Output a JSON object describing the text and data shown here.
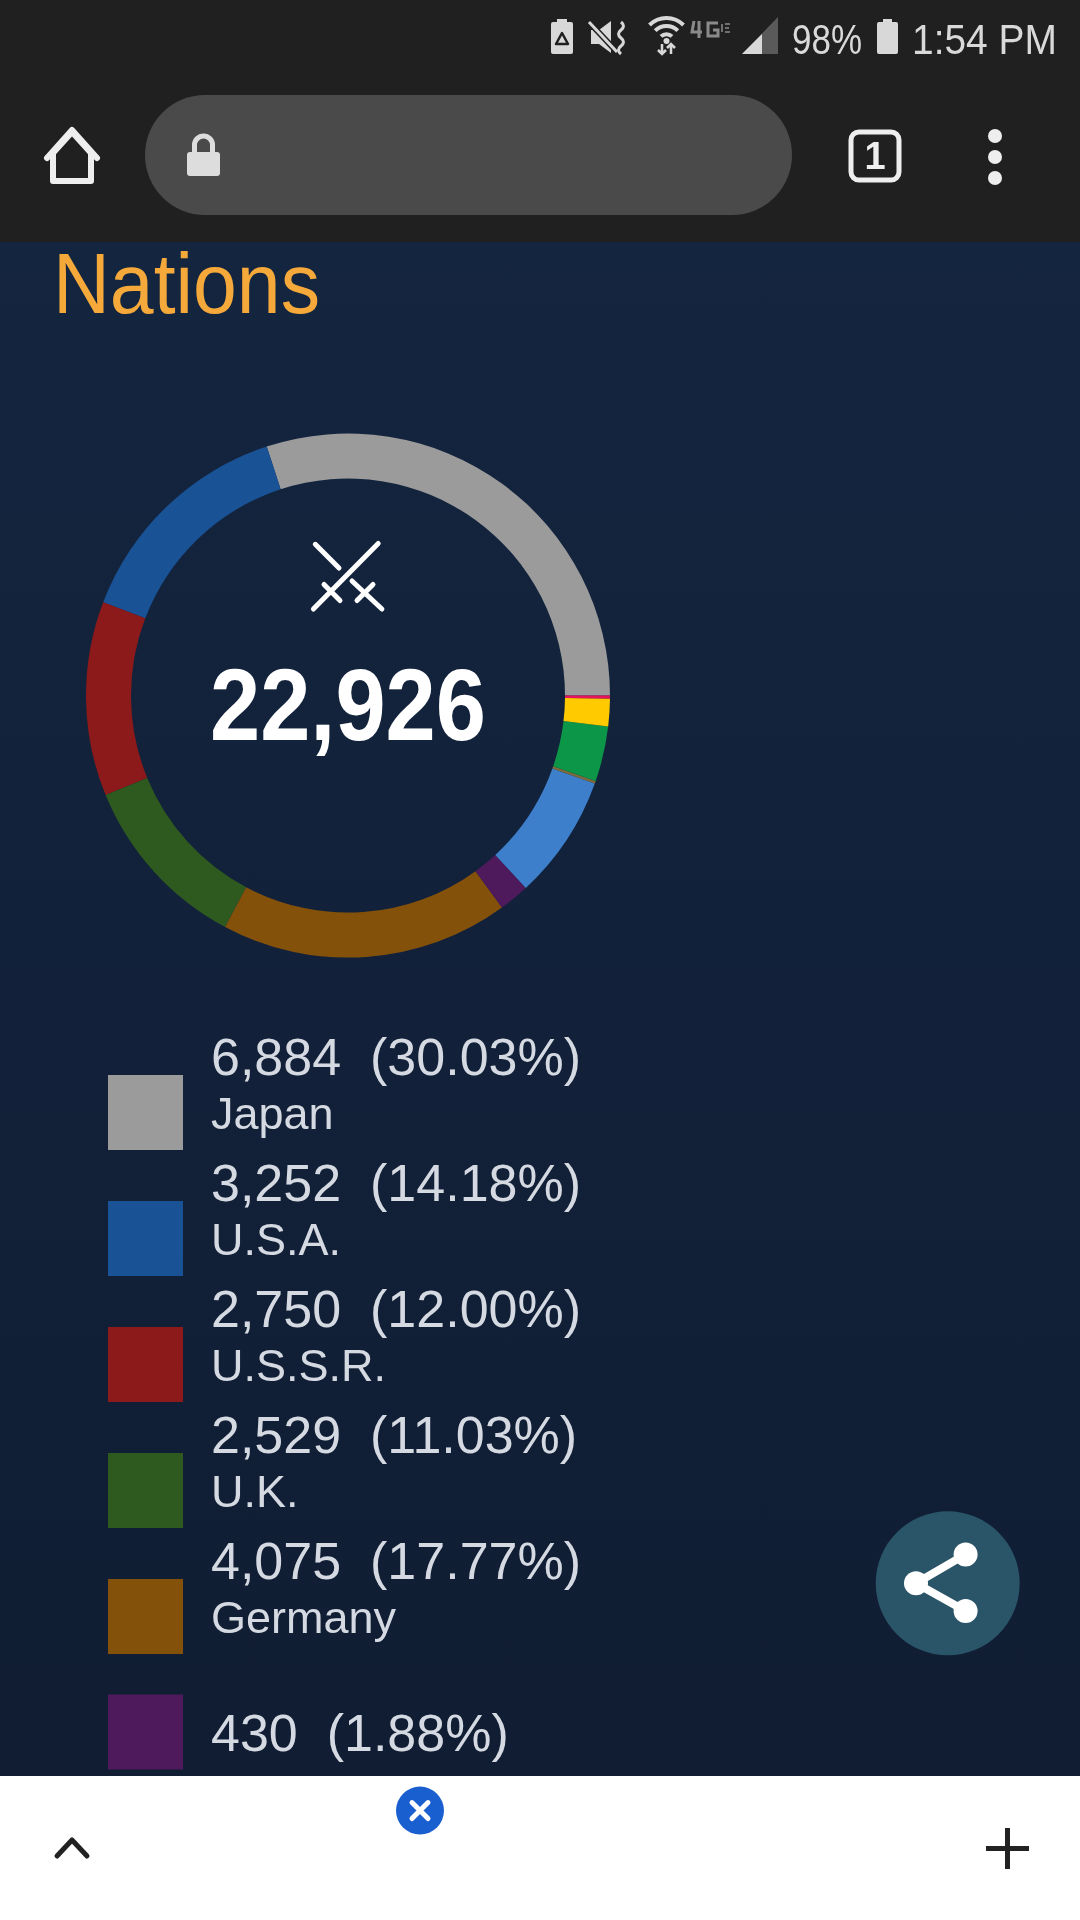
{
  "chart_data": {
    "type": "donut",
    "title": "Nations",
    "categories": [
      "Japan",
      "U.S.A.",
      "U.S.S.R.",
      "U.K.",
      "Germany",
      null,
      null,
      null,
      null,
      null,
      null
    ],
    "values": [
      6884,
      3252,
      2750,
      2529,
      4075,
      430,
      1760,
      40,
      780,
      390,
      40
    ],
    "colors": [
      "#9b9b9b",
      "#1a5296",
      "#8c1a1a",
      "#2e5a20",
      "#84510a",
      "#4e1a5c",
      "#3d7fca",
      "#7d6b3c",
      "#0b9648",
      "#ffcb00",
      "#e5145c"
    ],
    "value_labels": [
      "6,884  (30.03%)",
      "3,252  (14.18%)",
      "2,750  (12.00%)",
      "2,529  (11.03%)",
      "4,075  (17.77%)",
      null,
      null,
      null,
      null,
      null,
      null
    ],
    "legend": "bottom",
    "annotations": [
      "22,926",
      "98%",
      "1:54 PM",
      "1",
      "430  (1.88%)"
    ]
  }
}
